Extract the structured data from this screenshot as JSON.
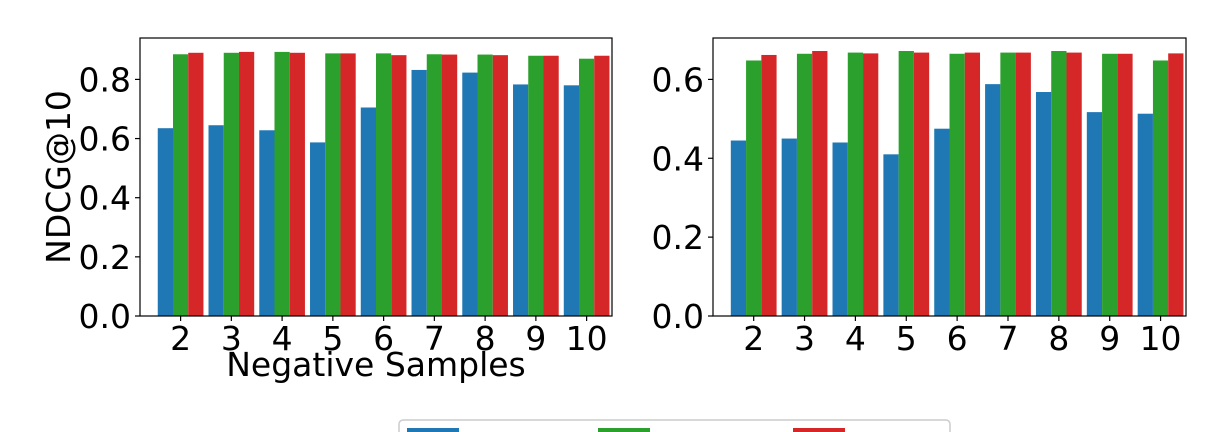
{
  "colors": {
    "series": [
      "#1f77b4",
      "#2ca02c",
      "#d62728"
    ],
    "axis": "#000000",
    "legend_border": "#cccccc"
  },
  "legend": {
    "placement": "bottom-center",
    "clipped": true
  },
  "chart_data": [
    {
      "type": "bar",
      "title": "",
      "xlabel": "Negative Samples",
      "ylabel": "NDCG@10",
      "categories": [
        "2",
        "3",
        "4",
        "5",
        "6",
        "7",
        "8",
        "9",
        "10"
      ],
      "ylim": [
        0,
        0.94
      ],
      "yticks": [
        "0.0",
        "0.2",
        "0.4",
        "0.6",
        "0.8"
      ],
      "grid": false,
      "series": [
        {
          "values": [
            0.635,
            0.645,
            0.628,
            0.587,
            0.705,
            0.832,
            0.823,
            0.783,
            0.78
          ]
        },
        {
          "values": [
            0.885,
            0.89,
            0.893,
            0.888,
            0.888,
            0.885,
            0.884,
            0.88,
            0.87
          ]
        },
        {
          "values": [
            0.89,
            0.893,
            0.89,
            0.888,
            0.882,
            0.884,
            0.882,
            0.88,
            0.88
          ]
        }
      ]
    },
    {
      "type": "bar",
      "title": "",
      "xlabel": "",
      "ylabel": "",
      "categories": [
        "2",
        "3",
        "4",
        "5",
        "6",
        "7",
        "8",
        "9",
        "10"
      ],
      "ylim": [
        0,
        0.705
      ],
      "yticks": [
        "0.0",
        "0.2",
        "0.4",
        "0.6"
      ],
      "grid": false,
      "series": [
        {
          "values": [
            0.445,
            0.45,
            0.44,
            0.41,
            0.475,
            0.588,
            0.568,
            0.517,
            0.513
          ]
        },
        {
          "values": [
            0.648,
            0.665,
            0.668,
            0.672,
            0.665,
            0.668,
            0.672,
            0.665,
            0.648
          ]
        },
        {
          "values": [
            0.662,
            0.672,
            0.666,
            0.668,
            0.668,
            0.668,
            0.668,
            0.665,
            0.666
          ]
        }
      ]
    }
  ]
}
